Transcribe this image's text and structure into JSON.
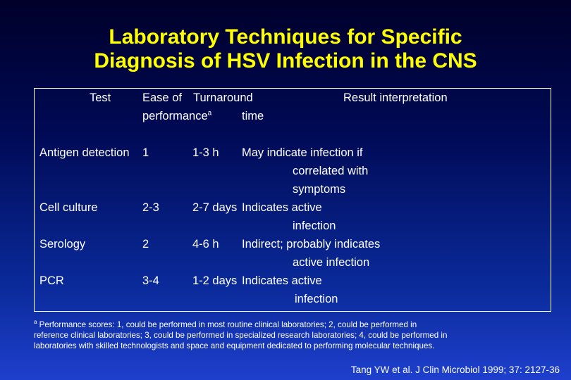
{
  "slide": {
    "title_line1": "Laboratory Techniques for Specific",
    "title_line2": "Diagnosis of HSV Infection in the CNS",
    "title_color": "#ffff00",
    "background_color": "#0a2a9a"
  },
  "table": {
    "headers": {
      "test": "Test",
      "ease_line1": "Ease of",
      "ease_line2": "performance",
      "ease_marker": "a",
      "turnaround_line1": "Turnaround",
      "turnaround_line2": "time",
      "result": "Result interpretation"
    },
    "rows": [
      {
        "test": "Antigen detection",
        "ease": "1",
        "turnaround": "1-3 h",
        "result_lines": [
          "May indicate infection if",
          "correlated with",
          "symptoms"
        ]
      },
      {
        "test": "Cell culture",
        "ease": "2-3",
        "turnaround": "2-7 days",
        "result_lines": [
          "Indicates active",
          "infection"
        ]
      },
      {
        "test": "Serology",
        "ease": "2",
        "turnaround": "4-6 h",
        "result_lines": [
          "Indirect; probably indicates",
          "active infection"
        ]
      },
      {
        "test": "PCR",
        "ease": "3-4",
        "turnaround": "1-2 days",
        "result_lines": [
          "Indicates active",
          "infection"
        ]
      }
    ]
  },
  "footnote": {
    "marker": "a",
    "line1": " Performance scores: 1, could be performed in most routine clinical laboratories; 2, could be performed in",
    "line2": "reference clinical laboratories; 3, could be performed in specialized research laboratories; 4, could be performed in",
    "line3": "laboratories with skilled technologists and space and equipment dedicated to performing molecular techniques."
  },
  "citation": "Tang YW et al. J Clin Microbiol 1999; 37: 2127-36"
}
